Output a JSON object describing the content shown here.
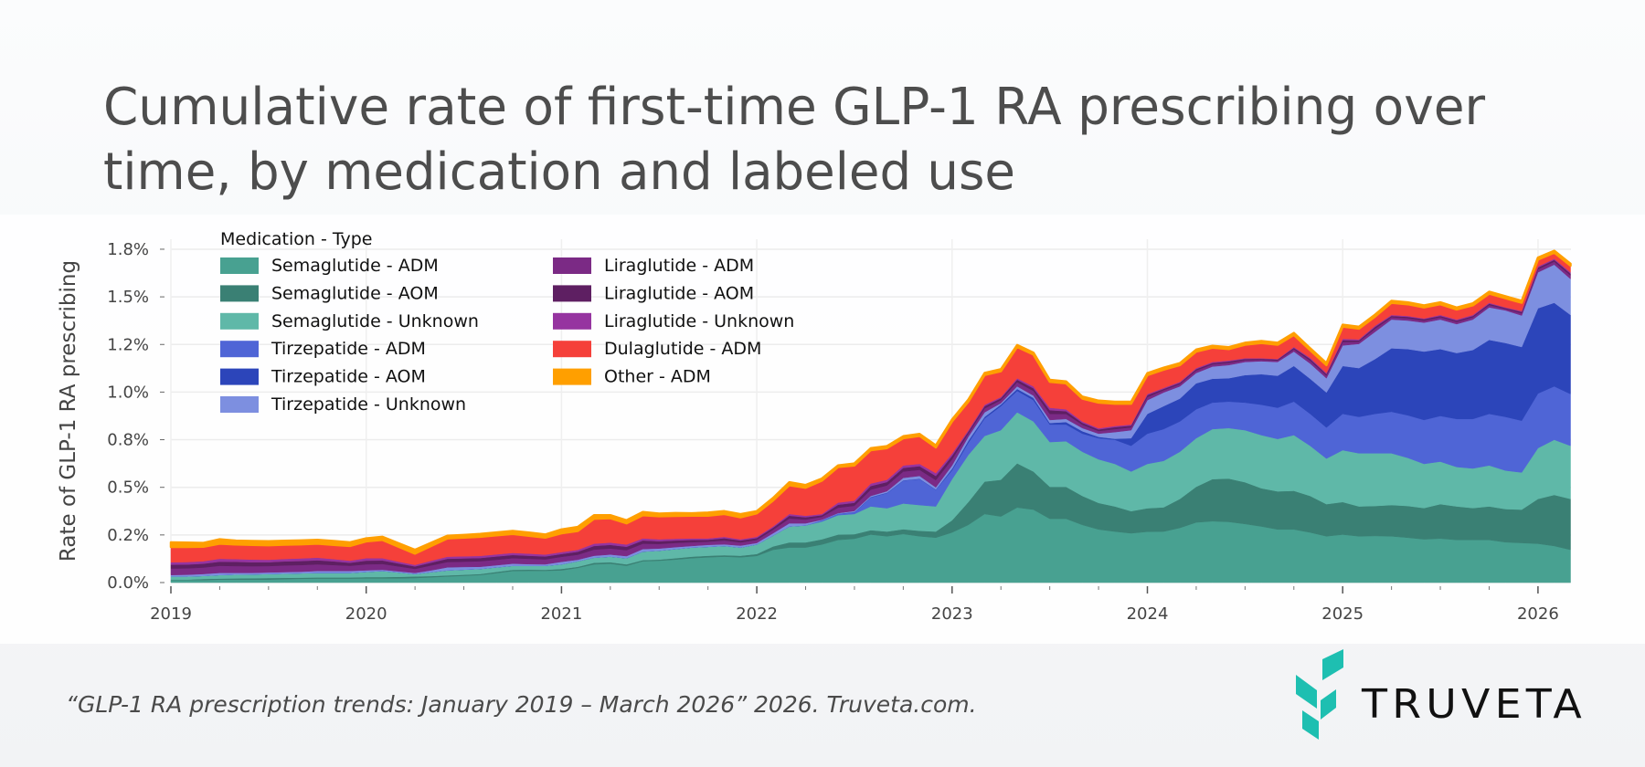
{
  "title_lines": [
    "Cumulative rate of first-time GLP-1 RA prescribing over",
    "time, by medication and labeled use"
  ],
  "footer": {
    "citation": "“GLP-1 RA prescription trends: January 2019 – March 2026” 2026. Truveta.com.",
    "logo_text": "TRUVETA",
    "logo_color": "#1EBFB1"
  },
  "chart_data": {
    "type": "area",
    "stacked": true,
    "ylabel": "Rate of GLP-1 RA prescribing",
    "xlabel": "",
    "ylim": [
      0,
      1.8
    ],
    "yticks": [
      0,
      0.25,
      0.5,
      0.75,
      1.0,
      1.25,
      1.5,
      1.75
    ],
    "ytick_labels": [
      "0.0%",
      "0.2%",
      "0.5%",
      "0.8%",
      "1.0%",
      "1.2%",
      "1.5%",
      "1.8%"
    ],
    "xticks": [
      "2019",
      "2020",
      "2021",
      "2022",
      "2023",
      "2024",
      "2025",
      "2026"
    ],
    "grid": true,
    "legend_title": "Medication - Type",
    "legend_position": "top-left",
    "x": [
      "2019-01",
      "2019-02",
      "2019-03",
      "2019-04",
      "2019-05",
      "2019-06",
      "2019-07",
      "2019-08",
      "2019-09",
      "2019-10",
      "2019-11",
      "2019-12",
      "2020-01",
      "2020-02",
      "2020-03",
      "2020-04",
      "2020-05",
      "2020-06",
      "2020-07",
      "2020-08",
      "2020-09",
      "2020-10",
      "2020-11",
      "2020-12",
      "2021-01",
      "2021-02",
      "2021-03",
      "2021-04",
      "2021-05",
      "2021-06",
      "2021-07",
      "2021-08",
      "2021-09",
      "2021-10",
      "2021-11",
      "2021-12",
      "2022-01",
      "2022-02",
      "2022-03",
      "2022-04",
      "2022-05",
      "2022-06",
      "2022-07",
      "2022-08",
      "2022-09",
      "2022-10",
      "2022-11",
      "2022-12",
      "2023-01",
      "2023-02",
      "2023-03",
      "2023-04",
      "2023-05",
      "2023-06",
      "2023-07",
      "2023-08",
      "2023-09",
      "2023-10",
      "2023-11",
      "2023-12",
      "2024-01",
      "2024-02",
      "2024-03",
      "2024-04",
      "2024-05",
      "2024-06",
      "2024-07",
      "2024-08",
      "2024-09",
      "2024-10",
      "2024-11",
      "2024-12",
      "2025-01",
      "2025-02",
      "2025-03",
      "2025-04",
      "2025-05",
      "2025-06",
      "2025-07",
      "2025-08",
      "2025-09",
      "2025-10",
      "2025-11",
      "2025-12",
      "2026-01",
      "2026-02",
      "2026-03"
    ],
    "series": [
      {
        "name": "Semaglutide - ADM",
        "color": "#48A191",
        "values": [
          0.013,
          0.013,
          0.013,
          0.016,
          0.016,
          0.016,
          0.016,
          0.018,
          0.02,
          0.021,
          0.021,
          0.021,
          0.022,
          0.022,
          0.022,
          0.024,
          0.028,
          0.032,
          0.036,
          0.04,
          0.05,
          0.061,
          0.062,
          0.062,
          0.064,
          0.077,
          0.096,
          0.099,
          0.088,
          0.112,
          0.115,
          0.121,
          0.128,
          0.133,
          0.136,
          0.133,
          0.14,
          0.172,
          0.184,
          0.184,
          0.2,
          0.224,
          0.23,
          0.252,
          0.243,
          0.255,
          0.243,
          0.236,
          0.263,
          0.303,
          0.36,
          0.347,
          0.394,
          0.383,
          0.335,
          0.335,
          0.303,
          0.279,
          0.268,
          0.259,
          0.267,
          0.268,
          0.287,
          0.316,
          0.322,
          0.319,
          0.308,
          0.295,
          0.279,
          0.279,
          0.263,
          0.243,
          0.252,
          0.243,
          0.245,
          0.243,
          0.236,
          0.227,
          0.231,
          0.224,
          0.224,
          0.224,
          0.212,
          0.208,
          0.204,
          0.192,
          0.172
        ]
      },
      {
        "name": "Semaglutide - AOM",
        "color": "#3A8074",
        "values": [
          0.003,
          0.003,
          0.006,
          0.005,
          0.006,
          0.007,
          0.008,
          0.007,
          0.006,
          0.006,
          0.006,
          0.006,
          0.007,
          0.007,
          0.008,
          0.008,
          0.006,
          0.006,
          0.005,
          0.005,
          0.006,
          0.006,
          0.006,
          0.005,
          0.008,
          0.006,
          0.008,
          0.008,
          0.008,
          0.006,
          0.006,
          0.007,
          0.008,
          0.008,
          0.008,
          0.008,
          0.01,
          0.018,
          0.027,
          0.027,
          0.027,
          0.028,
          0.024,
          0.023,
          0.025,
          0.025,
          0.029,
          0.032,
          0.064,
          0.12,
          0.17,
          0.193,
          0.232,
          0.2,
          0.168,
          0.168,
          0.152,
          0.139,
          0.132,
          0.116,
          0.123,
          0.127,
          0.152,
          0.187,
          0.221,
          0.227,
          0.219,
          0.2,
          0.2,
          0.203,
          0.192,
          0.169,
          0.171,
          0.157,
          0.157,
          0.164,
          0.166,
          0.164,
          0.181,
          0.176,
          0.167,
          0.176,
          0.174,
          0.175,
          0.235,
          0.268,
          0.267
        ]
      },
      {
        "name": "Semaglutide - Unknown",
        "color": "#5FB8A8",
        "values": [
          0.016,
          0.016,
          0.016,
          0.019,
          0.02,
          0.02,
          0.021,
          0.022,
          0.023,
          0.024,
          0.024,
          0.024,
          0.027,
          0.032,
          0.023,
          0.013,
          0.021,
          0.026,
          0.027,
          0.027,
          0.024,
          0.021,
          0.02,
          0.021,
          0.024,
          0.029,
          0.027,
          0.029,
          0.032,
          0.045,
          0.047,
          0.048,
          0.048,
          0.047,
          0.048,
          0.043,
          0.05,
          0.057,
          0.084,
          0.089,
          0.093,
          0.102,
          0.106,
          0.125,
          0.122,
          0.135,
          0.135,
          0.132,
          0.216,
          0.247,
          0.24,
          0.26,
          0.268,
          0.263,
          0.235,
          0.239,
          0.232,
          0.229,
          0.223,
          0.208,
          0.233,
          0.244,
          0.248,
          0.255,
          0.263,
          0.265,
          0.273,
          0.279,
          0.275,
          0.292,
          0.263,
          0.239,
          0.272,
          0.279,
          0.277,
          0.272,
          0.253,
          0.232,
          0.223,
          0.207,
          0.208,
          0.215,
          0.202,
          0.195,
          0.267,
          0.29,
          0.279
        ]
      },
      {
        "name": "Tirzepatide - ADM",
        "color": "#4F65D6",
        "values": [
          0,
          0,
          0,
          0,
          0,
          0,
          0,
          0,
          0,
          0,
          0,
          0,
          0,
          0,
          0,
          0,
          0,
          0,
          0,
          0,
          0,
          0,
          0,
          0,
          0,
          0,
          0,
          0,
          0,
          0,
          0,
          0,
          0,
          0,
          0,
          0,
          0,
          0,
          0,
          0,
          0.007,
          0.008,
          0.008,
          0.047,
          0.08,
          0.12,
          0.136,
          0.087,
          0.047,
          0.064,
          0.092,
          0.126,
          0.112,
          0.112,
          0.092,
          0.088,
          0.095,
          0.111,
          0.127,
          0.135,
          0.159,
          0.167,
          0.159,
          0.152,
          0.139,
          0.139,
          0.145,
          0.16,
          0.164,
          0.176,
          0.168,
          0.163,
          0.191,
          0.191,
          0.207,
          0.218,
          0.223,
          0.231,
          0.24,
          0.252,
          0.26,
          0.271,
          0.282,
          0.272,
          0.287,
          0.28,
          0.272
        ]
      },
      {
        "name": "Tirzepatide - AOM",
        "color": "#2C45BA",
        "values": [
          0,
          0,
          0,
          0,
          0,
          0,
          0,
          0,
          0,
          0,
          0,
          0,
          0,
          0,
          0,
          0,
          0,
          0,
          0,
          0,
          0,
          0,
          0,
          0,
          0,
          0,
          0,
          0,
          0,
          0,
          0,
          0,
          0,
          0,
          0,
          0,
          0,
          0,
          0,
          0,
          0,
          0,
          0.002,
          0.002,
          0.002,
          0.002,
          0.002,
          0.002,
          0.008,
          0.011,
          0.008,
          0.009,
          0.011,
          0.012,
          0.008,
          0.013,
          0.013,
          0.007,
          0.005,
          0.04,
          0.104,
          0.12,
          0.12,
          0.136,
          0.125,
          0.123,
          0.144,
          0.16,
          0.168,
          0.187,
          0.184,
          0.184,
          0.251,
          0.256,
          0.288,
          0.333,
          0.348,
          0.359,
          0.351,
          0.346,
          0.362,
          0.388,
          0.388,
          0.387,
          0.447,
          0.439,
          0.415
        ]
      },
      {
        "name": "Tirzepatide - Unknown",
        "color": "#7D8FE0",
        "values": [
          0.008,
          0.009,
          0.01,
          0.011,
          0.009,
          0.008,
          0.008,
          0.008,
          0.008,
          0.01,
          0.01,
          0.01,
          0.008,
          0.006,
          0.006,
          0.006,
          0.009,
          0.016,
          0.014,
          0.011,
          0.011,
          0.011,
          0.009,
          0.008,
          0.013,
          0.008,
          0.01,
          0.011,
          0.011,
          0.013,
          0.011,
          0.01,
          0.008,
          0.01,
          0.009,
          0.01,
          0.008,
          0.012,
          0.016,
          0.011,
          0.003,
          0.003,
          0.006,
          0.006,
          0.008,
          0.013,
          0.015,
          0.011,
          0.017,
          0.021,
          0.024,
          0.007,
          0.013,
          0.012,
          0.016,
          0.016,
          0.016,
          0.017,
          0.035,
          0.042,
          0.072,
          0.072,
          0.064,
          0.054,
          0.064,
          0.069,
          0.069,
          0.068,
          0.072,
          0.076,
          0.08,
          0.075,
          0.108,
          0.127,
          0.143,
          0.151,
          0.15,
          0.152,
          0.155,
          0.152,
          0.16,
          0.171,
          0.171,
          0.165,
          0.189,
          0.2,
          0.189
        ]
      },
      {
        "name": "Liraglutide - ADM",
        "color": "#7B2A85",
        "values": [
          0.034,
          0.034,
          0.034,
          0.037,
          0.036,
          0.035,
          0.034,
          0.035,
          0.035,
          0.035,
          0.031,
          0.027,
          0.032,
          0.031,
          0.026,
          0.021,
          0.026,
          0.028,
          0.028,
          0.029,
          0.029,
          0.029,
          0.028,
          0.026,
          0.026,
          0.026,
          0.032,
          0.032,
          0.031,
          0.028,
          0.024,
          0.022,
          0.02,
          0.017,
          0.02,
          0.017,
          0.016,
          0.018,
          0.025,
          0.02,
          0.015,
          0.028,
          0.027,
          0.033,
          0.03,
          0.033,
          0.032,
          0.038,
          0.032,
          0.017,
          0.02,
          0.016,
          0.022,
          0.024,
          0.032,
          0.026,
          0.018,
          0.014,
          0.016,
          0.015,
          0.016,
          0.012,
          0.012,
          0.013,
          0.012,
          0.012,
          0.01,
          0.008,
          0.008,
          0.012,
          0.015,
          0.014,
          0.018,
          0.012,
          0.016,
          0.012,
          0.012,
          0.011,
          0.012,
          0.012,
          0.012,
          0.012,
          0.008,
          0.012,
          0.016,
          0.016,
          0.018
        ]
      },
      {
        "name": "Liraglutide - AOM",
        "color": "#5E1F62",
        "values": [
          0.02,
          0.02,
          0.02,
          0.022,
          0.022,
          0.021,
          0.02,
          0.021,
          0.021,
          0.021,
          0.019,
          0.016,
          0.019,
          0.018,
          0.015,
          0.013,
          0.015,
          0.017,
          0.017,
          0.017,
          0.017,
          0.017,
          0.016,
          0.015,
          0.015,
          0.016,
          0.019,
          0.019,
          0.018,
          0.017,
          0.014,
          0.013,
          0.012,
          0.01,
          0.012,
          0.01,
          0.01,
          0.011,
          0.015,
          0.012,
          0.009,
          0.016,
          0.016,
          0.019,
          0.018,
          0.019,
          0.019,
          0.022,
          0.019,
          0.01,
          0.012,
          0.01,
          0.013,
          0.014,
          0.019,
          0.015,
          0.01,
          0.008,
          0.01,
          0.009,
          0.01,
          0.007,
          0.007,
          0.008,
          0.007,
          0.007,
          0.006,
          0.005,
          0.005,
          0.007,
          0.009,
          0.008,
          0.01,
          0.007,
          0.01,
          0.007,
          0.007,
          0.007,
          0.007,
          0.007,
          0.007,
          0.007,
          0.005,
          0.007,
          0.009,
          0.009,
          0.01
        ]
      },
      {
        "name": "Liraglutide - Unknown",
        "color": "#9634A0",
        "values": [
          0.013,
          0.013,
          0.013,
          0.015,
          0.014,
          0.014,
          0.013,
          0.013,
          0.014,
          0.014,
          0.012,
          0.011,
          0.013,
          0.012,
          0.01,
          0.008,
          0.01,
          0.011,
          0.011,
          0.011,
          0.011,
          0.011,
          0.011,
          0.01,
          0.01,
          0.01,
          0.012,
          0.012,
          0.012,
          0.011,
          0.01,
          0.009,
          0.008,
          0.007,
          0.007,
          0.006,
          0.006,
          0.007,
          0.009,
          0.008,
          0.006,
          0.011,
          0.011,
          0.013,
          0.012,
          0.013,
          0.012,
          0.015,
          0.012,
          0.007,
          0.008,
          0.006,
          0.008,
          0.01,
          0.013,
          0.01,
          0.007,
          0.006,
          0.006,
          0.006,
          0.006,
          0.005,
          0.005,
          0.005,
          0.005,
          0.005,
          0.004,
          0.003,
          0.003,
          0.005,
          0.006,
          0.005,
          0.007,
          0.005,
          0.006,
          0.005,
          0.005,
          0.004,
          0.005,
          0.005,
          0.005,
          0.005,
          0.003,
          0.005,
          0.006,
          0.006,
          0.007
        ]
      },
      {
        "name": "Dulaglutide - ADM",
        "color": "#F5403A",
        "values": [
          0.08,
          0.079,
          0.076,
          0.079,
          0.077,
          0.077,
          0.076,
          0.075,
          0.074,
          0.073,
          0.075,
          0.077,
          0.088,
          0.096,
          0.078,
          0.059,
          0.077,
          0.096,
          0.098,
          0.1,
          0.1,
          0.099,
          0.094,
          0.089,
          0.099,
          0.099,
          0.131,
          0.128,
          0.111,
          0.122,
          0.121,
          0.12,
          0.119,
          0.119,
          0.12,
          0.116,
          0.124,
          0.136,
          0.151,
          0.147,
          0.175,
          0.187,
          0.185,
          0.175,
          0.166,
          0.143,
          0.147,
          0.135,
          0.168,
          0.15,
          0.156,
          0.136,
          0.164,
          0.167,
          0.136,
          0.136,
          0.12,
          0.135,
          0.117,
          0.109,
          0.099,
          0.096,
          0.088,
          0.087,
          0.075,
          0.06,
          0.071,
          0.08,
          0.075,
          0.063,
          0.04,
          0.042,
          0.064,
          0.056,
          0.048,
          0.064,
          0.061,
          0.058,
          0.056,
          0.053,
          0.051,
          0.048,
          0.048,
          0.043,
          0.036,
          0.032,
          0.035
        ]
      },
      {
        "name": "Other - ADM",
        "color": "#FF9F00",
        "values": [
          0.024,
          0.023,
          0.02,
          0.023,
          0.02,
          0.02,
          0.021,
          0.02,
          0.02,
          0.02,
          0.02,
          0.019,
          0.016,
          0.016,
          0.018,
          0.02,
          0.017,
          0.014,
          0.014,
          0.015,
          0.015,
          0.016,
          0.016,
          0.016,
          0.02,
          0.021,
          0.019,
          0.016,
          0.016,
          0.016,
          0.014,
          0.015,
          0.013,
          0.016,
          0.015,
          0.016,
          0.011,
          0.013,
          0.016,
          0.014,
          0.011,
          0.008,
          0.01,
          0.01,
          0.01,
          0.01,
          0.01,
          0.01,
          0.01,
          0.01,
          0.01,
          0.01,
          0.01,
          0.01,
          0.01,
          0.01,
          0.01,
          0.01,
          0.01,
          0.01,
          0.01,
          0.01,
          0.01,
          0.01,
          0.01,
          0.01,
          0.01,
          0.01,
          0.01,
          0.01,
          0.01,
          0.01,
          0.01,
          0.01,
          0.01,
          0.01,
          0.01,
          0.01,
          0.01,
          0.01,
          0.01,
          0.01,
          0.01,
          0.01,
          0.01,
          0.01,
          0.01
        ]
      }
    ]
  }
}
